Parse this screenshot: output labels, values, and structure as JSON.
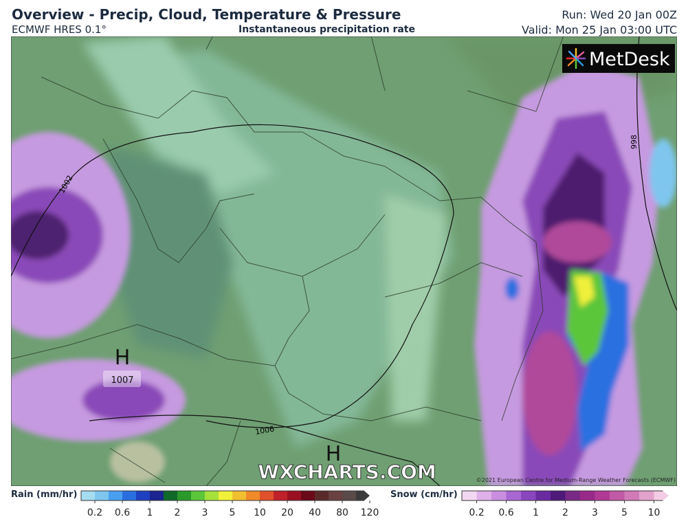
{
  "header": {
    "title": "Overview - Precip, Cloud, Temperature & Pressure",
    "model": "ECMWF HRES 0.1°",
    "subtitle": "Instantaneous precipitation rate",
    "run": "Run: Wed 20 Jan 00Z",
    "valid": "Valid: Mon 25 Jan 03:00 UTC"
  },
  "logo": "MetDesk",
  "map": {
    "pressure_centers": [
      {
        "label": "H",
        "value": "1007"
      },
      {
        "label": "H"
      }
    ],
    "isobar_labels": [
      "1002",
      "1006",
      "998"
    ],
    "watermark": "WXCHARTS.COM",
    "copyright": "©2021 European Centre for Medium-Range Weather Forecasts (ECMWF)"
  },
  "legend": {
    "rain": {
      "label": "Rain (mm/hr)",
      "ticks": [
        0.2,
        0.6,
        1,
        2,
        3,
        5,
        10,
        20,
        40,
        80,
        120
      ],
      "colors": [
        "#a6dcf0",
        "#7ec6ee",
        "#4aa0f0",
        "#2a6fe0",
        "#1e3fc0",
        "#1a238f",
        "#0f6a2a",
        "#2a9a2a",
        "#5cc63a",
        "#a6e03a",
        "#f0f03a",
        "#f0c030",
        "#f08a2a",
        "#e0502a",
        "#c0202a",
        "#9a1020",
        "#6a0a18",
        "#5a2a2a",
        "#6a4040",
        "#5a4a4a",
        "#3a3a3a"
      ]
    },
    "snow": {
      "label": "Snow (cm/hr)",
      "ticks": [
        0.2,
        0.6,
        1,
        2,
        3,
        5,
        10
      ],
      "colors": [
        "#f2d8f2",
        "#e0b0ea",
        "#c98ee0",
        "#a866d2",
        "#8a46be",
        "#6a2aa0",
        "#4e1a7a",
        "#7a2a86",
        "#9a2a8a",
        "#b03a96",
        "#c05aa6",
        "#d27ab8",
        "#e2a2cc",
        "#f2cce4"
      ]
    }
  }
}
